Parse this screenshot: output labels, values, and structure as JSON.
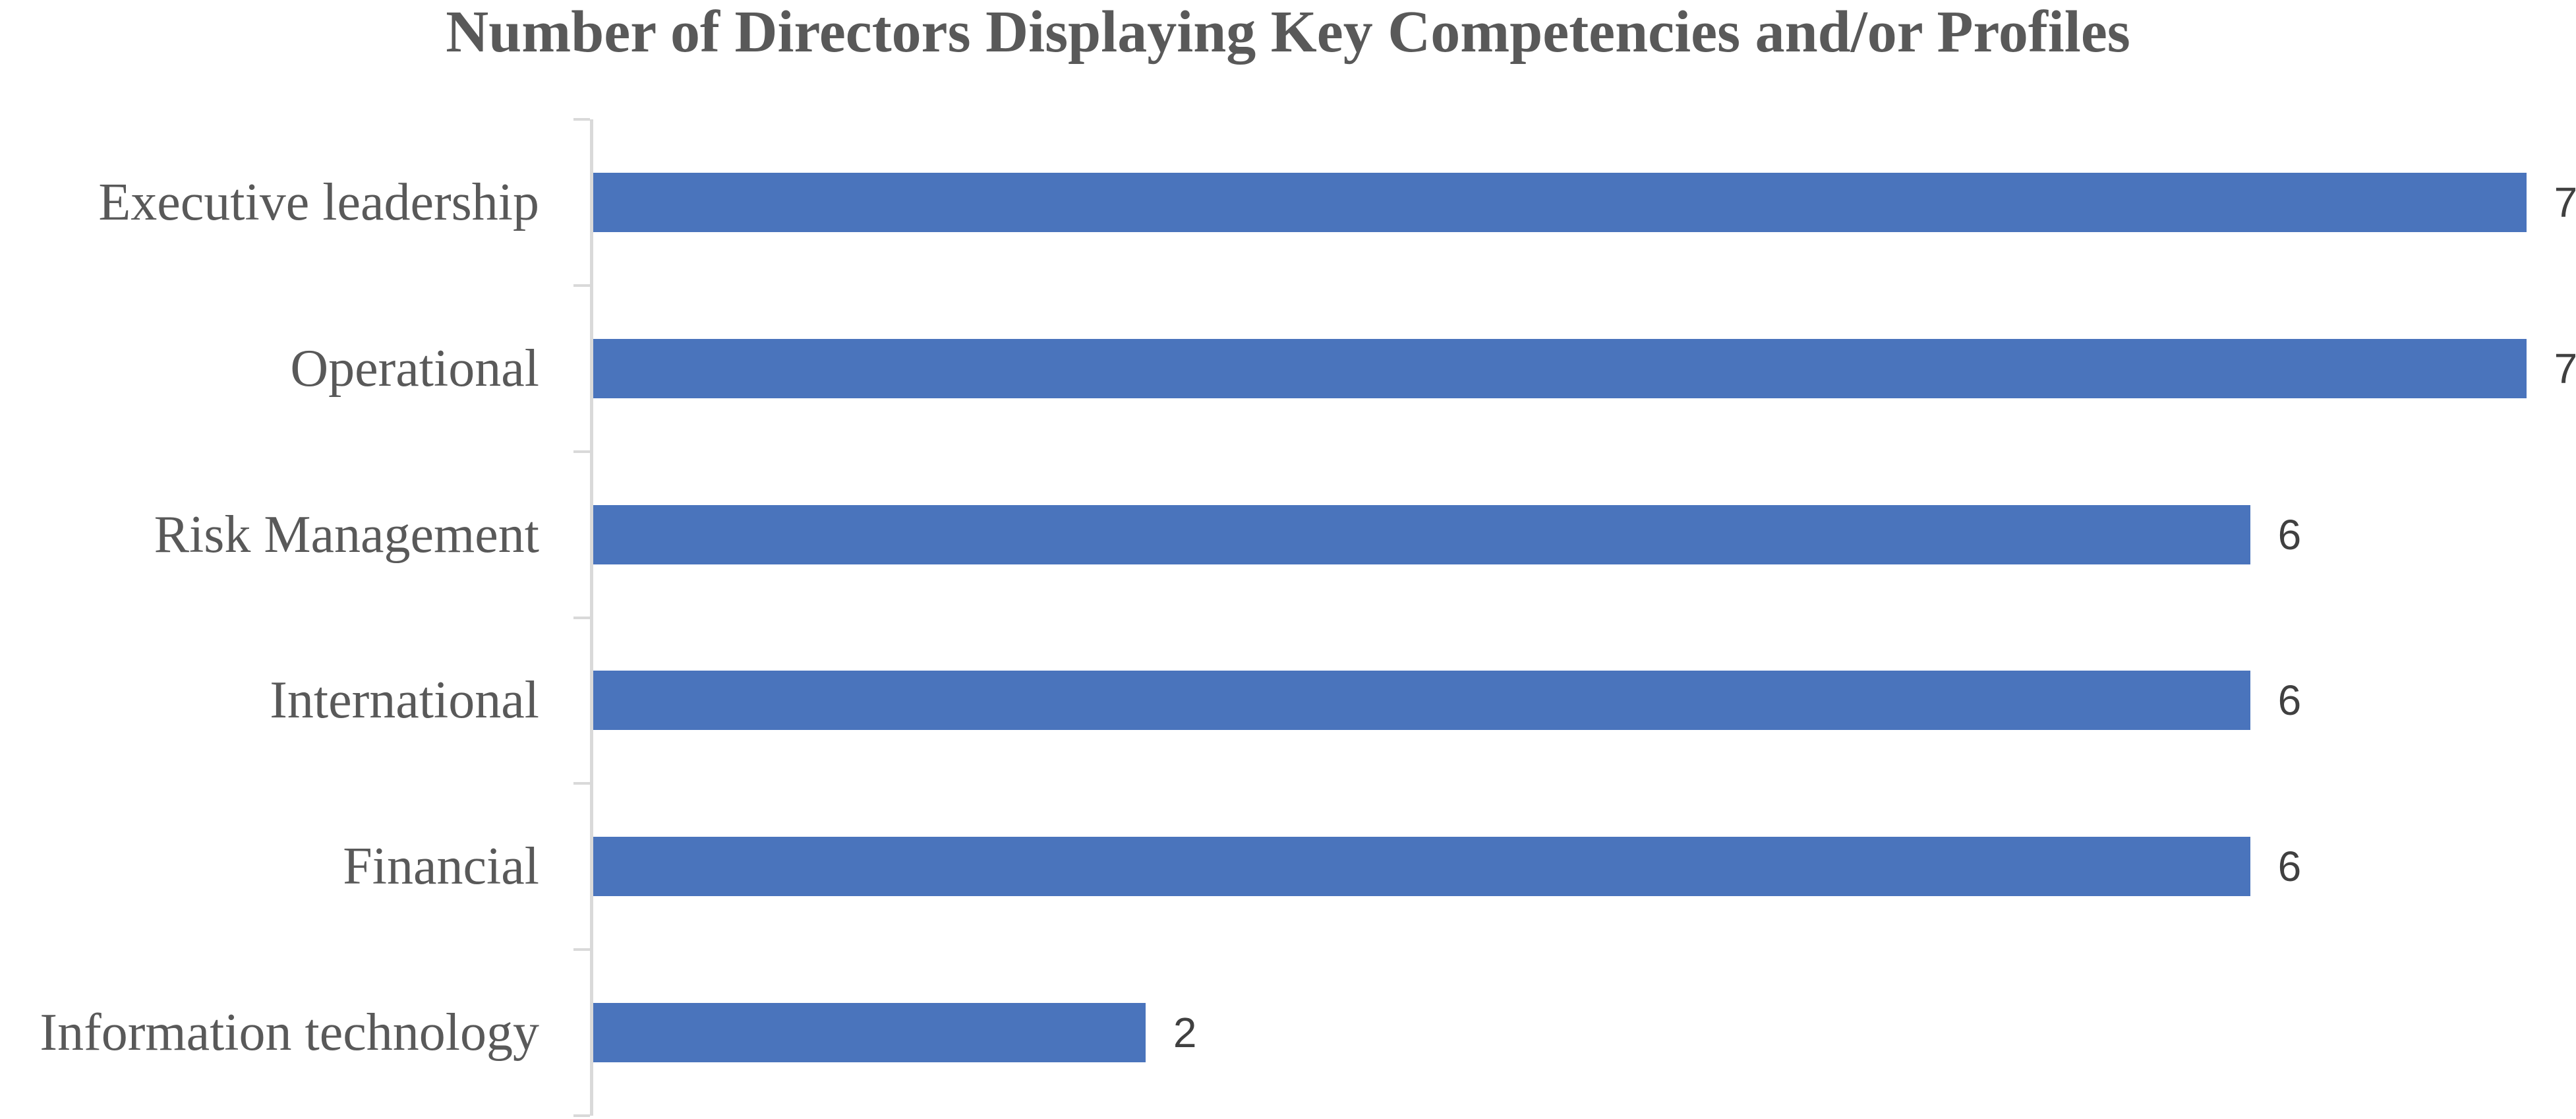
{
  "chart_data": {
    "type": "bar",
    "orientation": "horizontal",
    "title": "Number of Directors Displaying Key Competencies and/or Profiles",
    "categories": [
      "Executive leadership",
      "Operational",
      "Risk Management",
      "International",
      "Financial",
      "Information technology"
    ],
    "values": [
      7,
      7,
      6,
      6,
      6,
      2
    ],
    "data_labels": [
      7,
      7,
      6,
      6,
      6,
      2
    ],
    "xlabel": "",
    "ylabel": "",
    "xlim": [
      0,
      7.18
    ],
    "gridlines": "off",
    "legend": "none",
    "value_axis_labels": "none",
    "colors": {
      "bar": "#4A74BC",
      "axis_line": "#D9D9D9",
      "title_text": "#595959",
      "category_text": "#595959",
      "value_label_text": "#404040",
      "background": "#FFFFFF"
    }
  }
}
